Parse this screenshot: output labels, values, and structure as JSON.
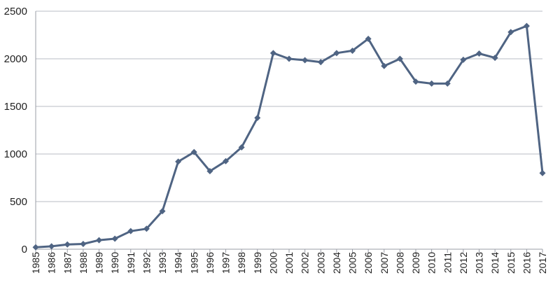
{
  "chart_data": {
    "type": "line",
    "title": "",
    "xlabel": "",
    "ylabel": "",
    "x": [
      "1985",
      "1986",
      "1987",
      "1988",
      "1989",
      "1990",
      "1991",
      "1992",
      "1993",
      "1994",
      "1995",
      "1996",
      "1997",
      "1998",
      "1999",
      "2000",
      "2001",
      "2002",
      "2003",
      "2004",
      "2005",
      "2006",
      "2007",
      "2008",
      "2009",
      "2010",
      "2011",
      "2012",
      "2013",
      "2014",
      "2015",
      "2016",
      "2017"
    ],
    "series": [
      {
        "name": "",
        "color": "#4f6483",
        "values": [
          20,
          30,
          50,
          55,
          95,
          110,
          190,
          215,
          400,
          920,
          1020,
          820,
          925,
          1070,
          1380,
          2060,
          2000,
          1985,
          1965,
          2060,
          2085,
          2210,
          1925,
          2000,
          1760,
          1740,
          1740,
          1990,
          2055,
          2010,
          2280,
          2345,
          800
        ]
      }
    ],
    "ylim": [
      0,
      2500
    ],
    "yticks": [
      0,
      500,
      1000,
      1500,
      2000,
      2500
    ],
    "grid": true,
    "legend": "none"
  }
}
